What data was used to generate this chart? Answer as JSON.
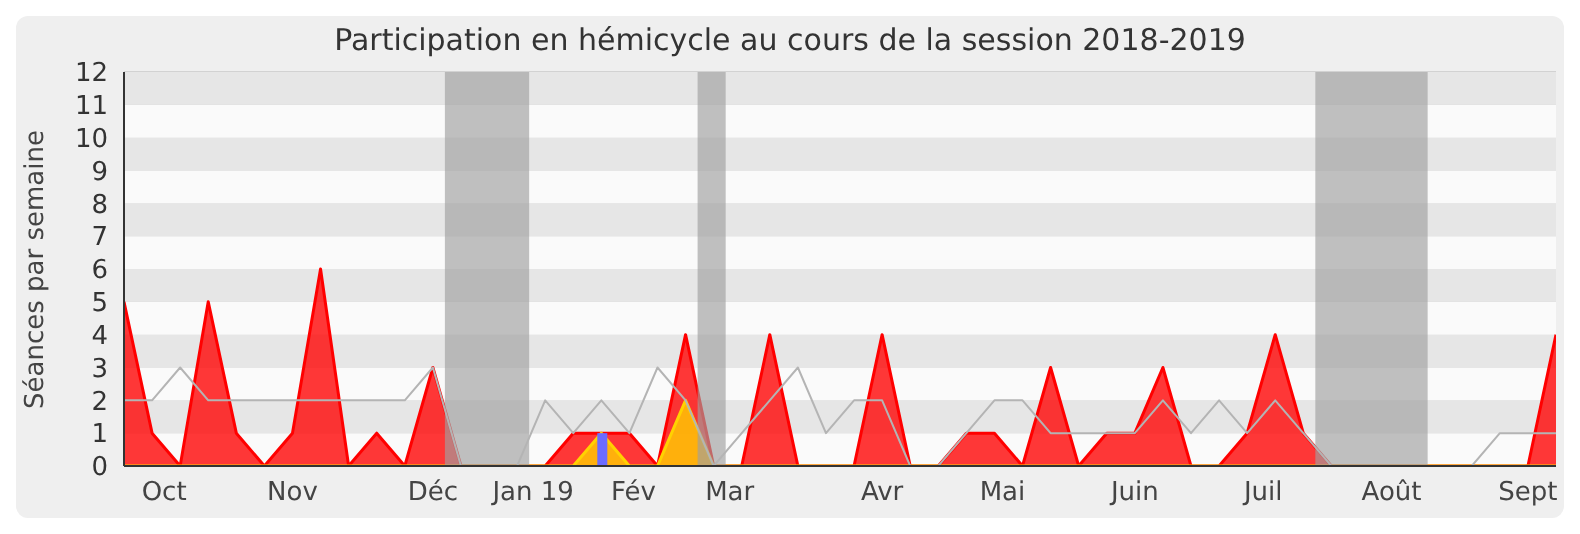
{
  "chart_data": {
    "type": "area",
    "title": "Participation en hémicycle au cours de la session 2018-2019",
    "ylabel": "Séances par semaine",
    "x": [
      "2018-10-01",
      "2018-10-08",
      "2018-10-15",
      "2018-10-22",
      "2018-10-29",
      "2018-11-05",
      "2018-11-12",
      "2018-11-19",
      "2018-11-26",
      "2018-12-03",
      "2018-12-10",
      "2018-12-17",
      "2018-12-24",
      "2018-12-31",
      "2019-01-07",
      "2019-01-14",
      "2019-01-21",
      "2019-01-28",
      "2019-02-04",
      "2019-02-11",
      "2019-02-18",
      "2019-02-25",
      "2019-03-04",
      "2019-03-11",
      "2019-03-18",
      "2019-03-25",
      "2019-04-01",
      "2019-04-08",
      "2019-04-15",
      "2019-04-22",
      "2019-04-29",
      "2019-05-06",
      "2019-05-13",
      "2019-05-20",
      "2019-05-27",
      "2019-06-03",
      "2019-06-10",
      "2019-06-17",
      "2019-06-24",
      "2019-07-01",
      "2019-07-08",
      "2019-07-15",
      "2019-07-22",
      "2019-07-29",
      "2019-08-05",
      "2019-08-12",
      "2019-08-19",
      "2019-08-26",
      "2019-09-02",
      "2019-09-09",
      "2019-09-16",
      "2019-09-23"
    ],
    "xlim": [
      "2018-10-01",
      "2019-09-23"
    ],
    "xticks": [
      {
        "value": "2018-10-11",
        "label": "Oct"
      },
      {
        "value": "2018-11-12",
        "label": "Nov"
      },
      {
        "value": "2018-12-17",
        "label": "Déc"
      },
      {
        "value": "2019-01-11",
        "label": "Jan 19"
      },
      {
        "value": "2019-02-05",
        "label": "Fév"
      },
      {
        "value": "2019-03-01",
        "label": "Mar"
      },
      {
        "value": "2019-04-08",
        "label": "Avr"
      },
      {
        "value": "2019-05-08",
        "label": "Mai"
      },
      {
        "value": "2019-06-10",
        "label": "Juin"
      },
      {
        "value": "2019-07-12",
        "label": "Juil"
      },
      {
        "value": "2019-08-13",
        "label": "Août"
      },
      {
        "value": "2019-09-16",
        "label": "Sept"
      }
    ],
    "ylim": [
      0,
      12
    ],
    "yticks": [
      0,
      1,
      2,
      3,
      4,
      5,
      6,
      7,
      8,
      9,
      10,
      11,
      12
    ],
    "grid": "y",
    "legend": false,
    "bands": [
      {
        "axis": "x",
        "from": "2018-12-20",
        "to": "2019-01-10",
        "color": "#a0a0a0"
      },
      {
        "axis": "x",
        "from": "2019-02-21",
        "to": "2019-02-28",
        "color": "#a0a0a0"
      },
      {
        "axis": "x",
        "from": "2019-07-25",
        "to": "2019-08-22",
        "color": "#a0a0a0"
      }
    ],
    "series": [
      {
        "type": "line",
        "color": "#b4b4b4",
        "values": [
          2,
          2,
          3,
          2,
          2,
          2,
          2,
          2,
          2,
          2,
          2,
          3,
          0,
          0,
          0,
          2,
          1,
          2,
          1,
          3,
          2,
          0,
          1,
          2,
          3,
          1,
          2,
          2,
          0,
          0,
          1,
          2,
          2,
          1,
          1,
          1,
          1,
          2,
          1,
          2,
          1,
          2,
          1,
          0,
          0,
          0,
          0,
          0,
          0,
          1,
          1,
          1
        ]
      },
      {
        "color": "#ff0000",
        "values": [
          5,
          1,
          0,
          5,
          1,
          0,
          1,
          6,
          0,
          1,
          0,
          3,
          0,
          0,
          0,
          0,
          1,
          1,
          1,
          0,
          4,
          0,
          0,
          4,
          0,
          0,
          0,
          4,
          0,
          0,
          1,
          1,
          0,
          3,
          0,
          1,
          1,
          3,
          0,
          0,
          1,
          4,
          1,
          0,
          0,
          0,
          0,
          0,
          0,
          0,
          0,
          4
        ]
      },
      {
        "type": "area",
        "color": "#ffd200",
        "values": [
          0,
          0,
          0,
          0,
          0,
          0,
          0,
          0,
          0,
          0,
          0,
          0,
          0,
          0,
          0,
          0,
          0,
          1,
          0,
          0,
          2,
          0,
          0,
          0,
          0,
          0,
          0,
          0,
          0,
          0,
          0,
          0,
          0,
          0,
          0,
          0,
          0,
          0,
          0,
          0,
          0,
          0,
          0,
          0,
          0,
          0,
          0,
          0,
          0,
          0,
          0,
          0
        ]
      },
      {
        "type": "bar",
        "color": "#6b6bff",
        "values": [
          null,
          null,
          null,
          null,
          null,
          null,
          null,
          null,
          null,
          null,
          null,
          null,
          null,
          null,
          null,
          null,
          null,
          1,
          null,
          null,
          null,
          null,
          null,
          null,
          null,
          null,
          null,
          null,
          null,
          null,
          null,
          null,
          null,
          null,
          null,
          null,
          null,
          null,
          null,
          null,
          null,
          null,
          null,
          null,
          null,
          null,
          null,
          null,
          null,
          null,
          null,
          null
        ]
      }
    ]
  }
}
